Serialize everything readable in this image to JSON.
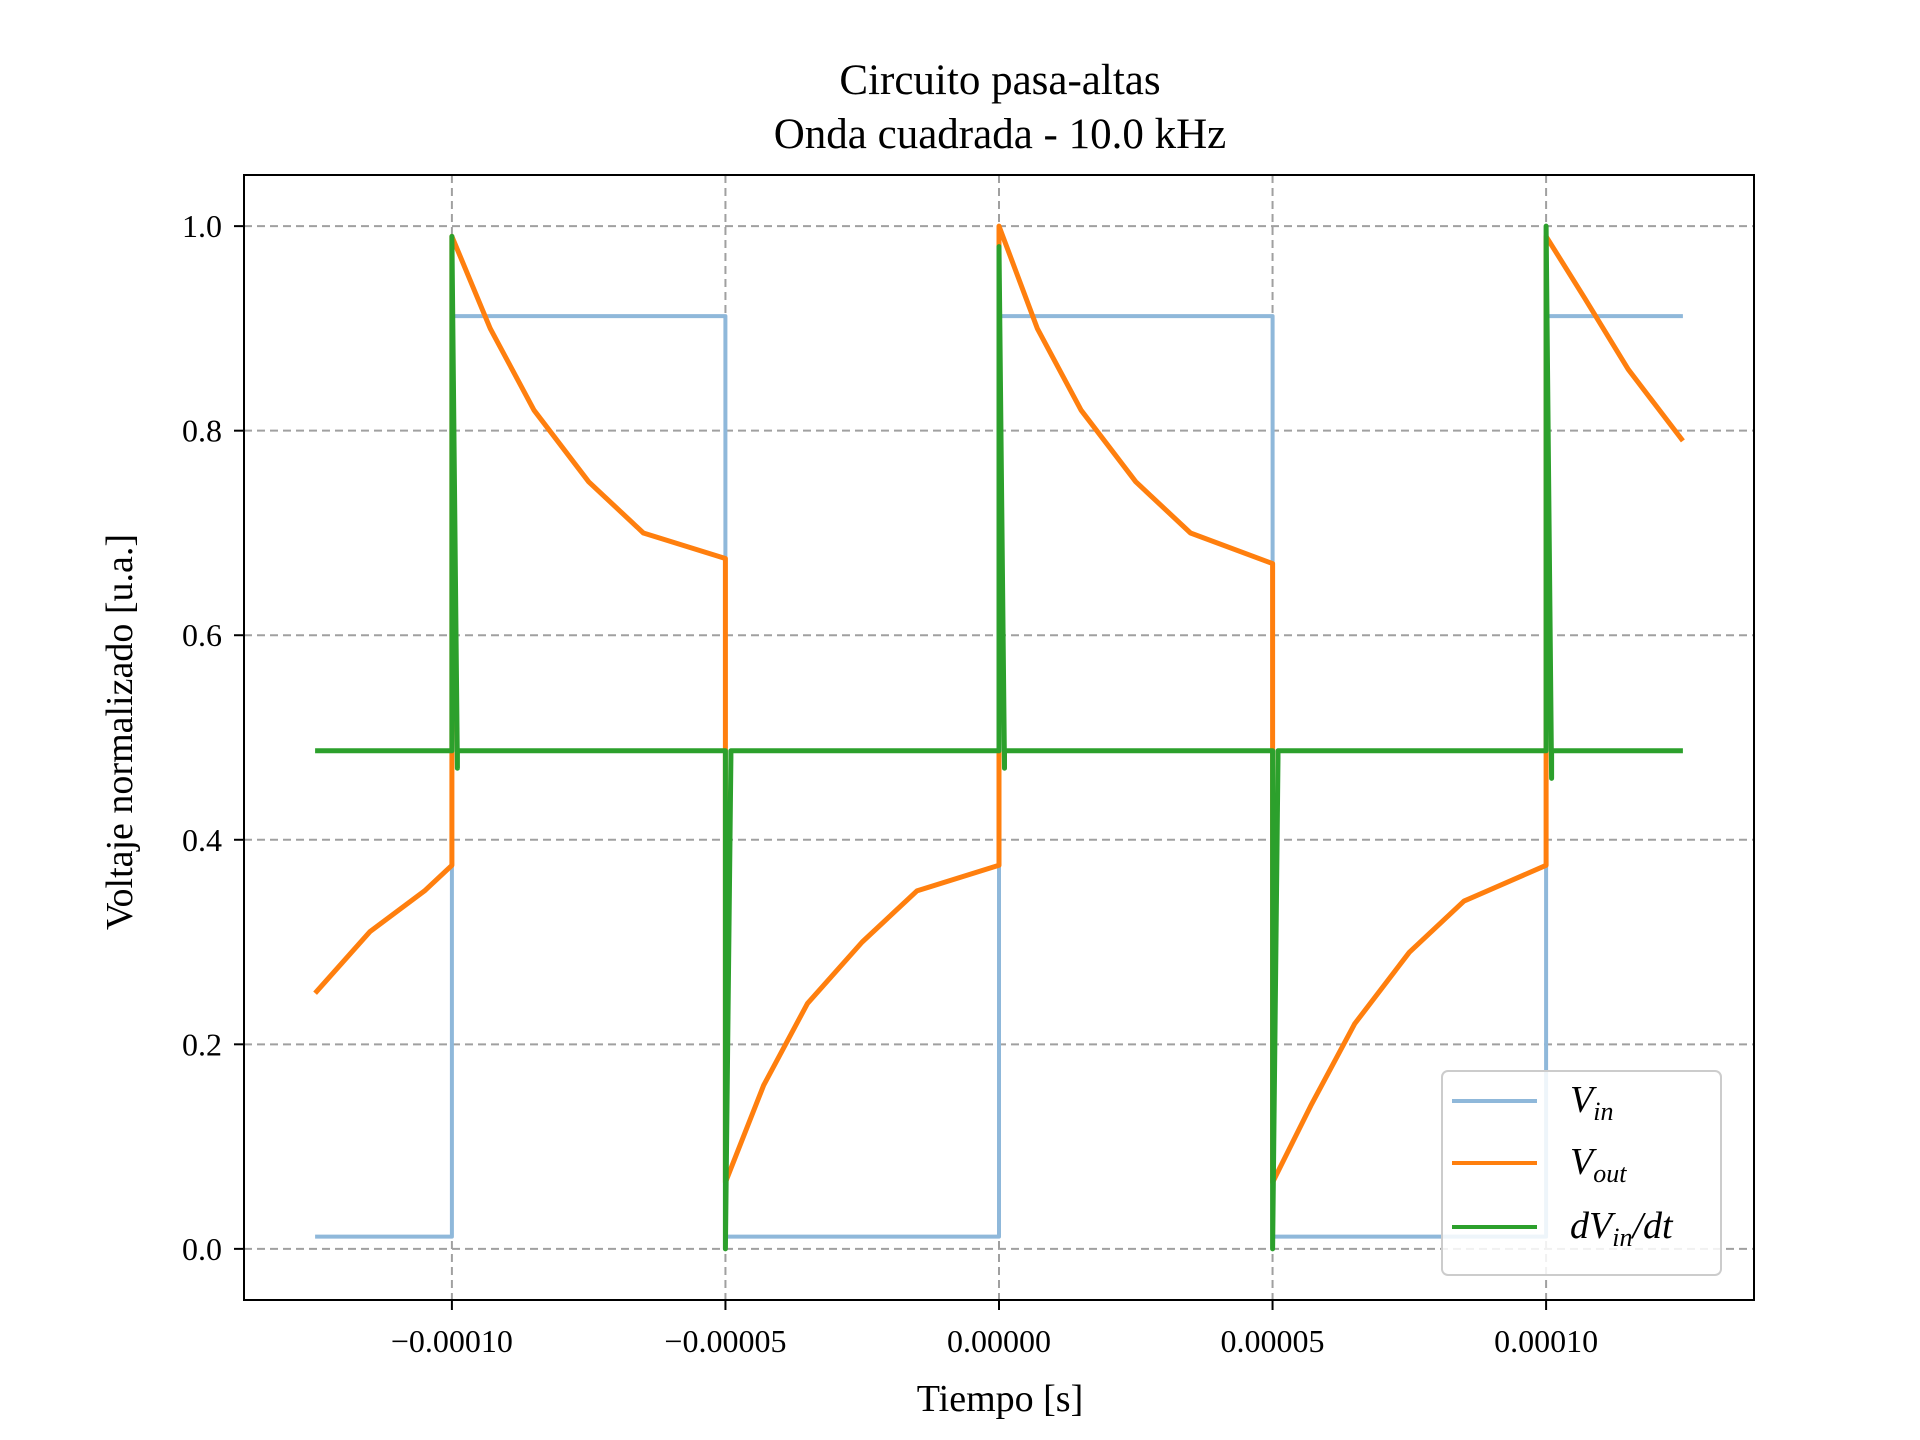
{
  "chart_data": {
    "type": "line",
    "title_lines": [
      "Circuito pasa-altas",
      "Onda cuadrada - 10.0 kHz"
    ],
    "xlabel": "Tiempo [s]",
    "ylabel": "Voltaje normalizado [u.a.]",
    "xlim": [
      -0.000138,
      0.000138
    ],
    "ylim": [
      -0.05,
      1.05
    ],
    "xticks": [
      -0.0001,
      -5e-05,
      0,
      5e-05,
      0.0001
    ],
    "xtick_labels": [
      "−0.00010",
      "−0.00005",
      "0.00000",
      "0.00005",
      "0.00010"
    ],
    "yticks": [
      0,
      0.2,
      0.4,
      0.6,
      0.8,
      1.0
    ],
    "ytick_labels": [
      "0.0",
      "0.2",
      "0.4",
      "0.6",
      "0.8",
      "1.0"
    ],
    "grid": true,
    "grid_style": "dashed",
    "legend_position": "lower-right",
    "series": [
      {
        "name": "V_in",
        "legend_main": "V",
        "legend_sub": "in",
        "color": "#8fb8da",
        "x": [
          -0.000125,
          -0.0001,
          -0.0001,
          -5e-05,
          -5e-05,
          0.0,
          0.0,
          5e-05,
          5e-05,
          0.0001,
          0.0001,
          0.000125
        ],
        "y": [
          0.012,
          0.012,
          0.912,
          0.912,
          0.012,
          0.012,
          0.912,
          0.912,
          0.012,
          0.012,
          0.912,
          0.912
        ]
      },
      {
        "name": "V_out",
        "legend_main": "V",
        "legend_sub": "out",
        "color": "#ff7f0e",
        "x": [
          -0.000125,
          -0.000115,
          -0.000105,
          -0.0001,
          -0.0001,
          -9.3e-05,
          -8.5e-05,
          -7.5e-05,
          -6.5e-05,
          -5e-05,
          -5e-05,
          -4.3e-05,
          -3.5e-05,
          -2.5e-05,
          -1.5e-05,
          0.0,
          0.0,
          7e-06,
          1.5e-05,
          2.5e-05,
          3.5e-05,
          5e-05,
          5e-05,
          5.7e-05,
          6.5e-05,
          7.5e-05,
          8.5e-05,
          0.0001,
          0.0001,
          0.000107,
          0.000115,
          0.000125
        ],
        "y": [
          0.25,
          0.31,
          0.35,
          0.375,
          0.99,
          0.9,
          0.82,
          0.75,
          0.7,
          0.675,
          0.065,
          0.16,
          0.24,
          0.3,
          0.35,
          0.375,
          1.0,
          0.9,
          0.82,
          0.75,
          0.7,
          0.67,
          0.065,
          0.14,
          0.22,
          0.29,
          0.34,
          0.375,
          0.99,
          0.93,
          0.86,
          0.79
        ]
      },
      {
        "name": "dV_in/dt",
        "legend_main": "dV",
        "legend_sub": "in",
        "legend_tail": "/dt",
        "color": "#2ca02c",
        "x": [
          -0.000125,
          -0.0001,
          -0.0001,
          -9.9e-05,
          -9.9e-05,
          -5e-05,
          -5e-05,
          -4.9e-05,
          -4.9e-05,
          0.0,
          0.0,
          1e-06,
          1e-06,
          5e-05,
          5e-05,
          5.1e-05,
          5.1e-05,
          0.0001,
          0.0001,
          0.000101,
          0.000101,
          0.000125
        ],
        "y": [
          0.487,
          0.487,
          0.99,
          0.47,
          0.487,
          0.487,
          0.0,
          0.48,
          0.487,
          0.487,
          0.98,
          0.47,
          0.487,
          0.487,
          0.0,
          0.48,
          0.487,
          0.487,
          1.0,
          0.46,
          0.487,
          0.487
        ]
      }
    ]
  }
}
